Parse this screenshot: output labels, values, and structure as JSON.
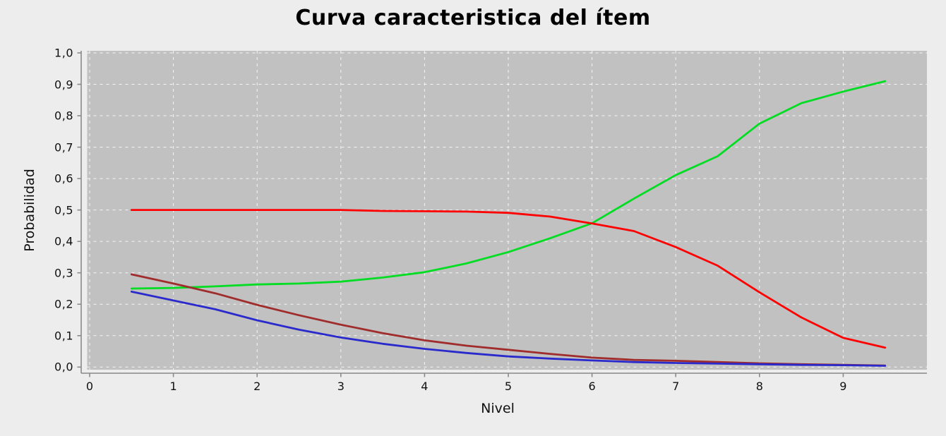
{
  "title": "Curva caracteristica del ítem",
  "colors": {
    "figure_bg": "#ededed",
    "plot_bg": "#c1c1c1",
    "grid": "#ffffff",
    "axis": "#8a8a8a",
    "text": "#111111"
  },
  "chart_data": {
    "type": "line",
    "title": "Curva caracteristica del ítem",
    "xlabel": "Nivel",
    "ylabel": "Probabilidad",
    "xlim": [
      -0.03,
      10.0
    ],
    "ylim": [
      -0.008,
      1.0075
    ],
    "grid": true,
    "grid_style": "white-dashed",
    "legend": "none",
    "x_ticks": [
      {
        "v": 0,
        "label": "0"
      },
      {
        "v": 1,
        "label": "1"
      },
      {
        "v": 2,
        "label": "2"
      },
      {
        "v": 3,
        "label": "3"
      },
      {
        "v": 4,
        "label": "4"
      },
      {
        "v": 5,
        "label": "5"
      },
      {
        "v": 6,
        "label": "6"
      },
      {
        "v": 7,
        "label": "7"
      },
      {
        "v": 8,
        "label": "8"
      },
      {
        "v": 9,
        "label": "9"
      }
    ],
    "y_ticks": [
      {
        "v": 0.0,
        "label": "0,0"
      },
      {
        "v": 0.1,
        "label": "0,1"
      },
      {
        "v": 0.2,
        "label": "0,2"
      },
      {
        "v": 0.3,
        "label": "0,3"
      },
      {
        "v": 0.4,
        "label": "0,4"
      },
      {
        "v": 0.5,
        "label": "0,5"
      },
      {
        "v": 0.6,
        "label": "0,6"
      },
      {
        "v": 0.7,
        "label": "0,7"
      },
      {
        "v": 0.8,
        "label": "0,8"
      },
      {
        "v": 0.9,
        "label": "0,9"
      },
      {
        "v": 1.0,
        "label": "1,0"
      }
    ],
    "x": [
      0.5,
      1.0,
      1.5,
      2.0,
      2.5,
      3.0,
      3.5,
      4.0,
      4.5,
      5.0,
      5.5,
      6.0,
      6.5,
      7.0,
      7.5,
      8.0,
      8.5,
      9.0,
      9.5
    ],
    "series": [
      {
        "name": "curva-verde",
        "color": "#00dd22",
        "values": [
          0.25,
          0.252,
          0.257,
          0.263,
          0.266,
          0.272,
          0.285,
          0.302,
          0.33,
          0.366,
          0.41,
          0.458,
          0.536,
          0.611,
          0.671,
          0.775,
          0.84,
          0.877,
          0.91
        ]
      },
      {
        "name": "curva-roja",
        "color": "#fe0000",
        "values": [
          0.5,
          0.5,
          0.5,
          0.5,
          0.5,
          0.5,
          0.497,
          0.496,
          0.495,
          0.491,
          0.479,
          0.457,
          0.433,
          0.382,
          0.323,
          0.238,
          0.158,
          0.093,
          0.062
        ]
      },
      {
        "name": "curva-granate",
        "color": "#a02c2c",
        "values": [
          0.295,
          0.266,
          0.235,
          0.198,
          0.165,
          0.135,
          0.108,
          0.085,
          0.068,
          0.055,
          0.042,
          0.03,
          0.023,
          0.02,
          0.016,
          0.012,
          0.009,
          0.007,
          0.005
        ]
      },
      {
        "name": "curva-azul",
        "color": "#2a2acc",
        "values": [
          0.24,
          0.212,
          0.184,
          0.149,
          0.119,
          0.094,
          0.074,
          0.058,
          0.045,
          0.034,
          0.027,
          0.021,
          0.016,
          0.013,
          0.011,
          0.009,
          0.007,
          0.006,
          0.004
        ]
      }
    ]
  }
}
